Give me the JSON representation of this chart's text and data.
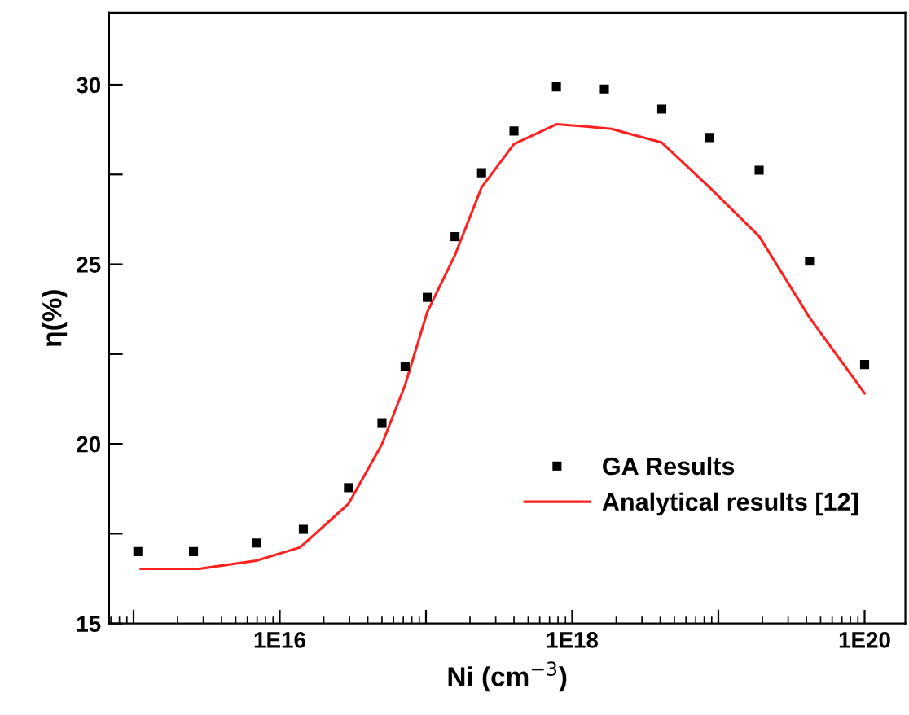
{
  "chart_data": {
    "type": "scatter",
    "xlabel": "Ni (cm$^{−3}$)",
    "ylabel": "η(%)",
    "log": "x",
    "xlim": [
      680000000000000.0,
      1.9e+20
    ],
    "ylim": [
      15,
      32
    ],
    "xticks": [
      {
        "value": 1000000000000000.0,
        "label": null
      },
      {
        "value": 1e+16,
        "label": "1E16"
      },
      {
        "value": 1e+17,
        "label": null
      },
      {
        "value": 1e+18,
        "label": "1E18"
      },
      {
        "value": 1e+19,
        "label": null
      },
      {
        "value": 1e+20,
        "label": "1E20"
      }
    ],
    "yticks": [
      15,
      {
        "value": 17.5,
        "label": null
      },
      20,
      {
        "value": 22.5,
        "label": null
      },
      25,
      {
        "value": 27.5,
        "label": null
      },
      30
    ],
    "grid": false,
    "legend": "bottom right",
    "series": [
      {
        "name": "GA Results",
        "marker": "square",
        "color": "#000000",
        "x": [
          1070000000000000.0,
          2570000000000000.0,
          6900000000000000.0,
          1.45e+16,
          2.95e+16,
          5e+16,
          7.2e+16,
          1.02e+17,
          1.58e+17,
          2.4e+17,
          4e+17,
          7.8e+17,
          1.66e+18,
          4.1e+18,
          8.7e+18,
          1.9e+19,
          4.2e+19,
          1e+20
        ],
        "values": [
          17.0,
          17.0,
          17.24,
          17.62,
          18.78,
          20.59,
          22.15,
          24.08,
          25.77,
          27.55,
          28.71,
          29.94,
          29.88,
          29.32,
          28.53,
          27.62,
          25.09,
          22.21
        ]
      },
      {
        "name": "Analytical results [12]",
        "type": "line",
        "line_style": "solid",
        "color": "#ff2020",
        "x": [
          1120000000000000.0,
          2800000000000000.0,
          6900000000000000.0,
          1.38e+16,
          2.95e+16,
          5e+16,
          7.2e+16,
          1.02e+17,
          1.58e+17,
          2.4e+17,
          4e+17,
          7.8e+17,
          1.23e+18,
          1.86e+18,
          4.1e+18,
          8.7e+18,
          1.9e+19,
          4.2e+19,
          1e+20
        ],
        "values": [
          16.52,
          16.52,
          16.75,
          17.12,
          18.33,
          19.99,
          21.64,
          23.67,
          25.26,
          27.14,
          28.35,
          28.9,
          28.84,
          28.77,
          28.39,
          27.14,
          25.78,
          23.52,
          21.41
        ]
      }
    ]
  }
}
